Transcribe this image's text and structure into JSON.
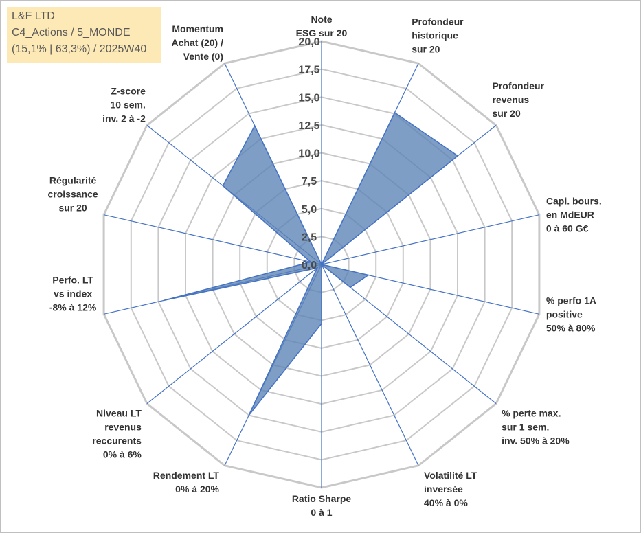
{
  "info_box": {
    "line1": "L&F LTD",
    "line2": "C4_Actions / 5_MONDE",
    "line3": "(15,1% | 63,3%) / 2025W40"
  },
  "chart_data": {
    "type": "radar",
    "title": "",
    "rlim": [
      0,
      20
    ],
    "ticks": [
      "0,0",
      "2,5",
      "5,0",
      "7,5",
      "10,0",
      "12,5",
      "15,0",
      "17,5",
      "20,0"
    ],
    "grid": true,
    "axes": [
      [
        "Note",
        "ESG sur 20"
      ],
      [
        "Profondeur",
        "historique",
        "sur 20"
      ],
      [
        "Profondeur",
        "revenus",
        "sur 20"
      ],
      [
        "Capi. bours.",
        "en MdEUR",
        "0 à 60 G€"
      ],
      [
        "% perfo 1A",
        "positive",
        "50% à 80%"
      ],
      [
        "% perte max.",
        "sur 1 sem.",
        "inv. 50% à 20%"
      ],
      [
        "Volatilité LT",
        "inversée",
        "40% à 0%"
      ],
      [
        "Ratio Sharpe",
        "0 à 1"
      ],
      [
        "Rendement LT",
        "0% à 20%"
      ],
      [
        "Niveau LT",
        "revenus",
        "reccurents",
        "0% à 6%"
      ],
      [
        "Perfo. LT",
        "vs index",
        "-8% à 12%"
      ],
      [
        "Régularité",
        "croissance",
        "sur 20"
      ],
      [
        "Z-score",
        "10 sem.",
        "inv. 2 à -2"
      ],
      [
        "Momentum",
        "Achat (20) /",
        "Vente (0)"
      ]
    ],
    "values": [
      0,
      15.1,
      15.6,
      0,
      4.3,
      3.3,
      0,
      5.3,
      15.0,
      0.5,
      14.5,
      1.0,
      11.3,
      13.8
    ],
    "colors": {
      "fill": "#5b83b5",
      "stroke": "#4472c4",
      "grid": "#c8c8c8",
      "spokes": "#4472c4"
    }
  }
}
